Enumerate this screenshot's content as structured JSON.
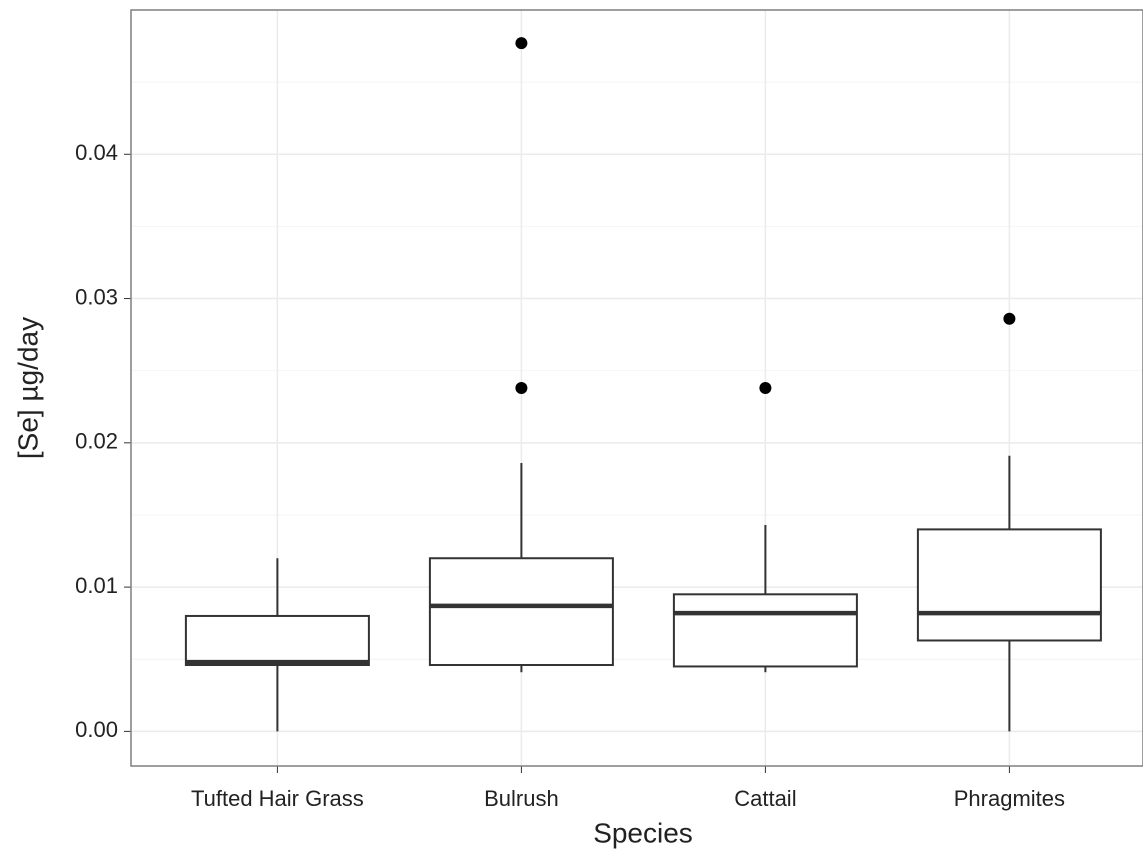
{
  "chart_data": {
    "type": "box",
    "x_label": "Species",
    "y_label": "[Se]   µg/day",
    "categories": [
      "Tufted Hair Grass",
      "Bulrush",
      "Cattail",
      "Phragmites"
    ],
    "boxes": [
      {
        "low": 0.0,
        "q1": 0.0046,
        "median": 0.0048,
        "q3": 0.008,
        "high": 0.012,
        "outliers": []
      },
      {
        "low": 0.0041,
        "q1": 0.0046,
        "median": 0.0087,
        "q3": 0.012,
        "high": 0.0186,
        "outliers": [
          0.0238,
          0.0477
        ]
      },
      {
        "low": 0.0041,
        "q1": 0.0045,
        "median": 0.0082,
        "q3": 0.0095,
        "high": 0.0143,
        "outliers": [
          0.0238
        ]
      },
      {
        "low": 0.0,
        "q1": 0.0063,
        "median": 0.0082,
        "q3": 0.014,
        "high": 0.0191,
        "outliers": [
          0.0286
        ]
      }
    ],
    "color": "#333333",
    "ylim": [
      -0.0024,
      0.05
    ],
    "yticks": [
      {
        "value": 0,
        "label": "0.00"
      },
      {
        "value": 0.01,
        "label": "0.01"
      },
      {
        "value": 0.02,
        "label": "0.02"
      },
      {
        "value": 0.03,
        "label": "0.03"
      },
      {
        "value": 0.04,
        "label": "0.04"
      }
    ],
    "minor_yticks": [
      0.005,
      0.015,
      0.025,
      0.035,
      0.045
    ],
    "grid": true
  }
}
